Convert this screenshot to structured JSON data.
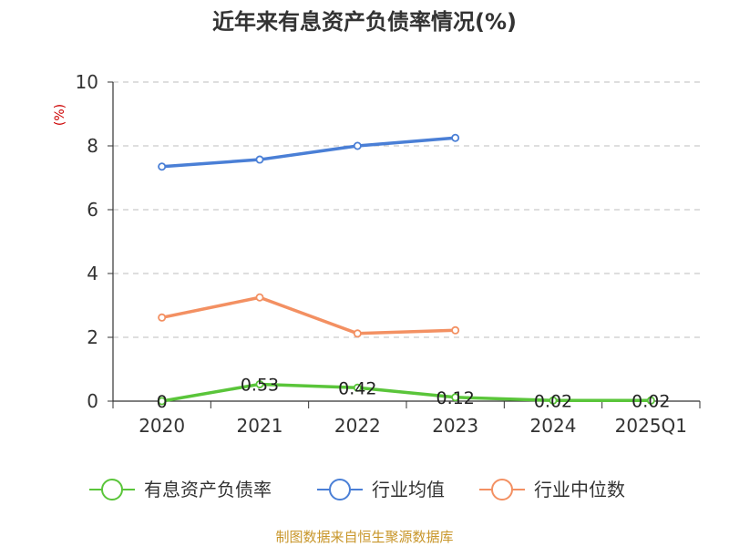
{
  "chart_data": {
    "type": "line",
    "title": "近年来有息资产负债率情况(%)",
    "ylabel": "(%)",
    "categories": [
      "2020",
      "2021",
      "2022",
      "2023",
      "2024",
      "2025Q1"
    ],
    "ylim": [
      0,
      10
    ],
    "yticks": [
      0,
      2,
      4,
      6,
      8,
      10
    ],
    "grid": true,
    "legend_position": "bottom",
    "series": [
      {
        "name": "有息资产负债率",
        "color": "#5ac53a",
        "values": [
          0,
          0.53,
          0.42,
          0.12,
          0.02,
          0.02
        ],
        "labels": [
          "0",
          "0.53",
          "0.42",
          "0.12",
          "0.02",
          "0.02"
        ]
      },
      {
        "name": "行业均值",
        "color": "#4a7fd6",
        "values": [
          7.35,
          7.57,
          8.0,
          8.25,
          null,
          null
        ]
      },
      {
        "name": "行业中位数",
        "color": "#f39062",
        "values": [
          2.62,
          3.25,
          2.12,
          2.22,
          null,
          null
        ]
      }
    ]
  },
  "source": "制图数据来自恒生聚源数据库"
}
